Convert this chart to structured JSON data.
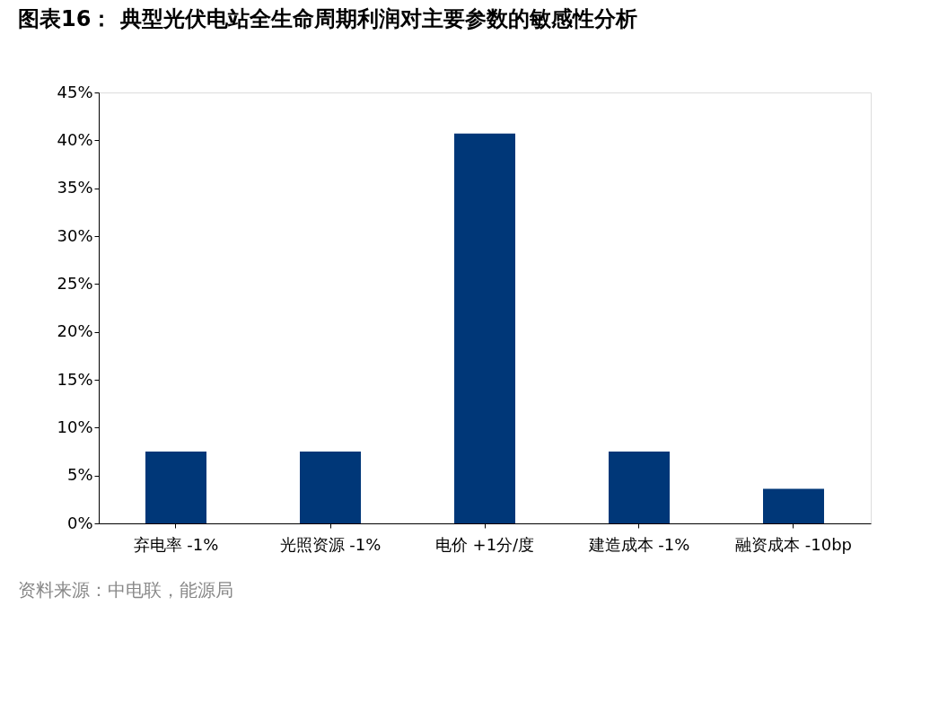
{
  "chart_data": {
    "type": "bar",
    "title": "图表16： 典型光伏电站全生命周期利润对主要参数的敏感性分析",
    "categories": [
      "弃电率 -1%",
      "光照资源 -1%",
      "电价 +1分/度",
      "建造成本 -1%",
      "融资成本 -10bp"
    ],
    "values": [
      7.5,
      7.5,
      40.7,
      7.5,
      3.6
    ],
    "color": "#003778",
    "ylim": [
      0,
      45
    ],
    "yticks": [
      {
        "value": 0,
        "label": "0%"
      },
      {
        "value": 5,
        "label": "5%"
      },
      {
        "value": 10,
        "label": "10%"
      },
      {
        "value": 15,
        "label": "15%"
      },
      {
        "value": 20,
        "label": "20%"
      },
      {
        "value": 25,
        "label": "25%"
      },
      {
        "value": 30,
        "label": "30%"
      },
      {
        "value": 35,
        "label": "35%"
      },
      {
        "value": 40,
        "label": "40%"
      },
      {
        "value": 45,
        "label": "45%"
      }
    ],
    "grid": false,
    "annotations": [
      "资料来源：中电联，能源局"
    ]
  }
}
